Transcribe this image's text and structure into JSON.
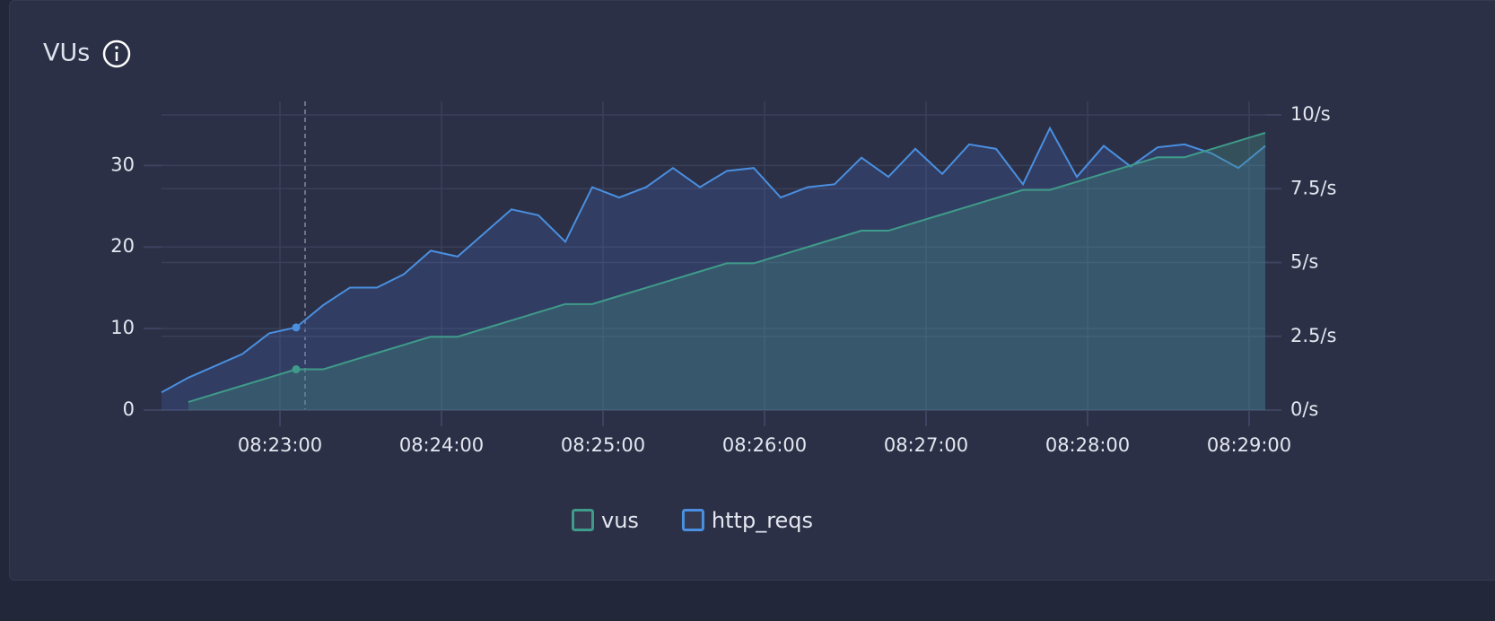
{
  "chart_data": {
    "type": "line",
    "title": "VUs",
    "x": [
      "08:22:16",
      "08:22:26",
      "08:22:36",
      "08:22:46",
      "08:22:56",
      "08:23:06",
      "08:23:16",
      "08:23:26",
      "08:23:36",
      "08:23:46",
      "08:23:56",
      "08:24:06",
      "08:24:16",
      "08:24:26",
      "08:24:36",
      "08:24:46",
      "08:24:56",
      "08:25:06",
      "08:25:16",
      "08:25:26",
      "08:25:36",
      "08:25:46",
      "08:25:56",
      "08:26:06",
      "08:26:16",
      "08:26:26",
      "08:26:36",
      "08:26:46",
      "08:26:56",
      "08:27:06",
      "08:27:16",
      "08:27:26",
      "08:27:36",
      "08:27:46",
      "08:27:56",
      "08:28:06",
      "08:28:16",
      "08:28:26",
      "08:28:36",
      "08:28:46",
      "08:28:56",
      "08:29:06"
    ],
    "series": [
      {
        "name": "vus",
        "color": "#3f9b8a",
        "values": [
          null,
          1,
          2,
          3,
          4,
          5,
          5,
          6,
          7,
          8,
          9,
          9,
          10,
          11,
          12,
          13,
          13,
          14,
          15,
          16,
          17,
          18,
          18,
          19,
          20,
          21,
          22,
          22,
          23,
          24,
          25,
          26,
          27,
          27,
          28,
          29,
          30,
          31,
          31,
          32,
          33,
          34
        ]
      },
      {
        "name": "http_reqs",
        "color": "#4a8fe0",
        "axis": "y2",
        "values": [
          0.6,
          1.1,
          1.5,
          1.9,
          2.6,
          2.8,
          3.55,
          4.15,
          4.15,
          4.6,
          5.4,
          5.2,
          6.0,
          6.8,
          6.6,
          5.7,
          7.55,
          7.2,
          7.55,
          8.2,
          7.55,
          8.1,
          8.2,
          7.2,
          7.55,
          7.65,
          8.55,
          7.9,
          8.85,
          8.0,
          9.0,
          8.85,
          7.65,
          9.55,
          7.9,
          8.95,
          8.25,
          8.9,
          9.0,
          8.7,
          8.2,
          8.95
        ]
      }
    ],
    "xlim": [
      "08:22:16",
      "08:29:06"
    ],
    "xticks": [
      "08:23:00",
      "08:24:00",
      "08:25:00",
      "08:26:00",
      "08:27:00",
      "08:28:00",
      "08:29:00"
    ],
    "ylim": [
      0,
      36.2
    ],
    "yticks": [
      0,
      10,
      20,
      30
    ],
    "y2lim": [
      0,
      10
    ],
    "y2ticks": [
      {
        "value": 0,
        "label": "0/s"
      },
      {
        "value": 2.5,
        "label": "2.5/s"
      },
      {
        "value": 5,
        "label": "5/s"
      },
      {
        "value": 7.5,
        "label": "7.5/s"
      },
      {
        "value": 10,
        "label": "10/s"
      }
    ],
    "grid": true
  }
}
